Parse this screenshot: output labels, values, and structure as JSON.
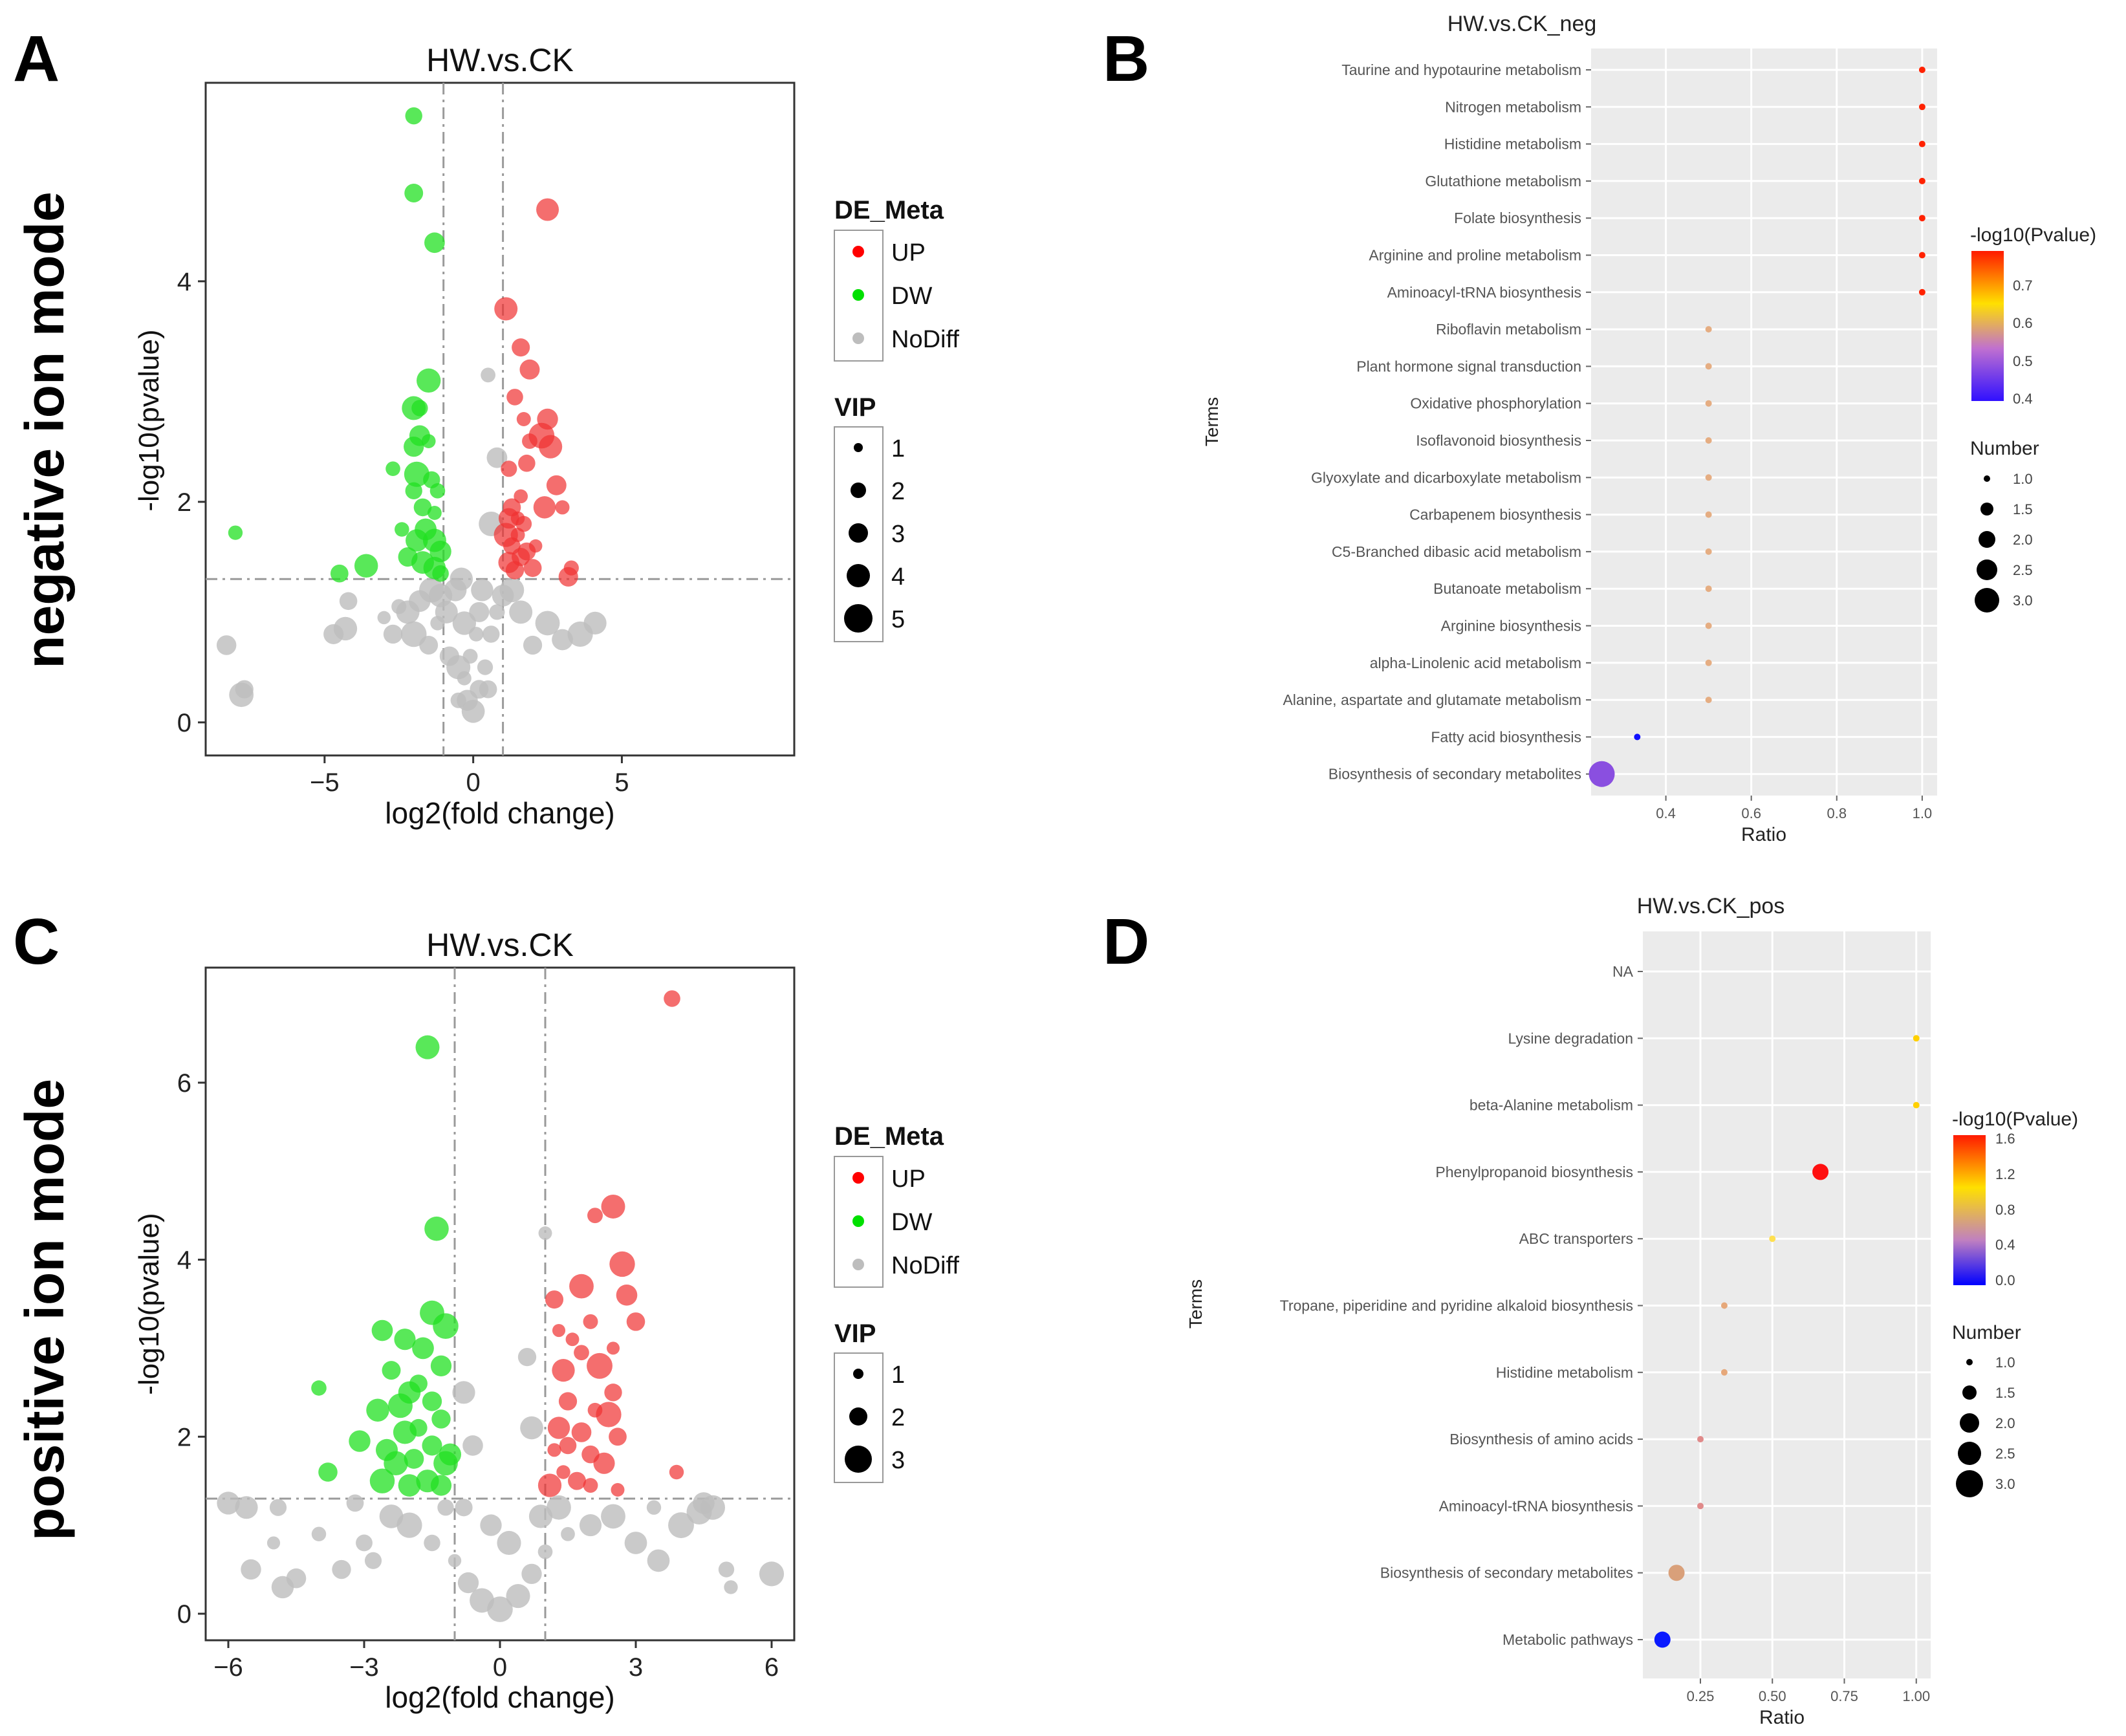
{
  "panel_labels": {
    "a": "A",
    "b": "B",
    "c": "C",
    "d": "D"
  },
  "row_labels": {
    "top": "negative ion mode",
    "bottom": "positive ion mode"
  },
  "chart_data": [
    {
      "id": "A",
      "type": "scatter",
      "title": "HW.vs.CK",
      "xlabel": "log2(fold change)",
      "ylabel": "-log10(pvalue)",
      "xlim": [
        -9,
        10.8
      ],
      "ylim": [
        -0.3,
        5.8
      ],
      "xticks": [
        -5,
        0,
        5
      ],
      "xtick_labels": [
        "−5",
        "0",
        "5"
      ],
      "yticks": [
        0,
        2,
        4
      ],
      "ytick_labels": [
        "0",
        "2",
        "4"
      ],
      "vlines": [
        -1,
        1
      ],
      "hline": 1.3,
      "legend": {
        "color_title": "DE_Meta",
        "color_entries": [
          {
            "label": "UP",
            "color": "#ff0000"
          },
          {
            "label": "DW",
            "color": "#00e000"
          },
          {
            "label": "NoDiff",
            "color": "#bdbdbd"
          }
        ],
        "size_title": "VIP",
        "size_entries": [
          "1",
          "2",
          "3",
          "4",
          "5"
        ]
      },
      "points": {
        "UP": [
          [
            2.5,
            4.65
          ],
          [
            1.1,
            3.75
          ],
          [
            1.6,
            3.4
          ],
          [
            1.9,
            3.2
          ],
          [
            1.4,
            2.95
          ],
          [
            2.5,
            2.75
          ],
          [
            1.7,
            2.75
          ],
          [
            2.3,
            2.6
          ],
          [
            1.9,
            2.55
          ],
          [
            2.6,
            2.5
          ],
          [
            1.8,
            2.35
          ],
          [
            2.8,
            2.15
          ],
          [
            3.0,
            1.95
          ],
          [
            2.4,
            1.95
          ],
          [
            1.6,
            2.05
          ],
          [
            1.3,
            1.95
          ],
          [
            1.2,
            1.85
          ],
          [
            1.7,
            1.8
          ],
          [
            1.5,
            1.7
          ],
          [
            1.3,
            1.6
          ],
          [
            1.6,
            1.5
          ],
          [
            1.2,
            1.45
          ],
          [
            1.8,
            1.55
          ],
          [
            2.1,
            1.6
          ],
          [
            1.4,
            1.38
          ],
          [
            3.3,
            1.4
          ],
          [
            3.2,
            1.32
          ],
          [
            1.1,
            1.7
          ],
          [
            1.5,
            1.85
          ],
          [
            1.2,
            2.3
          ],
          [
            2.0,
            1.4
          ]
        ],
        "DW": [
          [
            -2.0,
            5.5
          ],
          [
            -2.0,
            4.8
          ],
          [
            -1.3,
            4.35
          ],
          [
            -1.5,
            3.1
          ],
          [
            -1.8,
            2.85
          ],
          [
            -2.0,
            2.85
          ],
          [
            -1.8,
            2.6
          ],
          [
            -1.5,
            2.55
          ],
          [
            -2.0,
            2.5
          ],
          [
            -1.9,
            2.25
          ],
          [
            -1.4,
            2.2
          ],
          [
            -1.2,
            2.1
          ],
          [
            -2.0,
            2.1
          ],
          [
            -1.7,
            1.95
          ],
          [
            -1.3,
            1.9
          ],
          [
            -2.4,
            1.75
          ],
          [
            -1.6,
            1.75
          ],
          [
            -1.9,
            1.65
          ],
          [
            -1.3,
            1.65
          ],
          [
            -1.1,
            1.55
          ],
          [
            -2.2,
            1.5
          ],
          [
            -1.7,
            1.45
          ],
          [
            -1.3,
            1.4
          ],
          [
            -3.6,
            1.42
          ],
          [
            -4.5,
            1.35
          ],
          [
            -1.1,
            1.35
          ],
          [
            -8.0,
            1.72
          ],
          [
            -2.7,
            2.3
          ]
        ],
        "NoDiff": [
          [
            -7.7,
            0.3
          ],
          [
            -7.8,
            0.25
          ],
          [
            -8.3,
            0.7
          ],
          [
            -4.3,
            0.85
          ],
          [
            -4.7,
            0.8
          ],
          [
            -4.2,
            1.1
          ],
          [
            -3.0,
            0.95
          ],
          [
            -2.5,
            1.05
          ],
          [
            -2.0,
            0.8
          ],
          [
            -1.5,
            0.7
          ],
          [
            -1.2,
            0.9
          ],
          [
            -0.9,
            1.0
          ],
          [
            -0.8,
            0.6
          ],
          [
            -0.5,
            0.5
          ],
          [
            -0.3,
            0.4
          ],
          [
            -0.2,
            0.2
          ],
          [
            0,
            0.1
          ],
          [
            0.2,
            0.3
          ],
          [
            0.4,
            0.5
          ],
          [
            0.6,
            0.8
          ],
          [
            0.8,
            1.0
          ],
          [
            1.0,
            1.15
          ],
          [
            1.3,
            1.2
          ],
          [
            1.6,
            1.0
          ],
          [
            2.0,
            0.7
          ],
          [
            2.5,
            0.9
          ],
          [
            3.0,
            0.75
          ],
          [
            3.6,
            0.8
          ],
          [
            4.1,
            0.9
          ],
          [
            0.5,
            3.15
          ],
          [
            0.8,
            2.4
          ],
          [
            0.6,
            1.8
          ],
          [
            0.3,
            1.2
          ],
          [
            -0.4,
            1.3
          ],
          [
            -0.6,
            1.2
          ],
          [
            -1.1,
            1.15
          ],
          [
            -1.4,
            1.2
          ],
          [
            -1.8,
            1.1
          ],
          [
            -2.2,
            1.0
          ],
          [
            -2.7,
            0.8
          ],
          [
            -0.1,
            0.6
          ],
          [
            0.1,
            0.8
          ],
          [
            -0.3,
            0.9
          ],
          [
            0.2,
            1.0
          ],
          [
            -0.5,
            0.2
          ],
          [
            0.5,
            0.3
          ]
        ]
      }
    },
    {
      "id": "B",
      "type": "scatter",
      "title": "HW.vs.CK_neg",
      "xlabel": "Ratio",
      "ylabel": "Terms",
      "xlim": [
        0.225,
        1.035
      ],
      "xticks": [
        0.4,
        0.6,
        0.8,
        1.0
      ],
      "xtick_labels": [
        "0.4",
        "0.6",
        "0.8",
        "1.0"
      ],
      "terms": [
        "Taurine and hypotaurine metabolism",
        "Nitrogen metabolism",
        "Histidine metabolism",
        "Glutathione metabolism",
        "Folate biosynthesis",
        "Arginine and proline metabolism",
        "Aminoacyl-tRNA biosynthesis",
        "Riboflavin metabolism",
        "Plant hormone signal transduction",
        "Oxidative phosphorylation",
        "Isoflavonoid biosynthesis",
        "Glyoxylate and dicarboxylate metabolism",
        "Carbapenem biosynthesis",
        "C5-Branched dibasic acid metabolism",
        "Butanoate metabolism",
        "Arginine biosynthesis",
        "alpha-Linolenic acid metabolism",
        "Alanine, aspartate and glutamate metabolism",
        "Fatty acid biosynthesis",
        "Biosynthesis of secondary metabolites"
      ],
      "ratio": [
        1.0,
        1.0,
        1.0,
        1.0,
        1.0,
        1.0,
        1.0,
        0.5,
        0.5,
        0.5,
        0.5,
        0.5,
        0.5,
        0.5,
        0.5,
        0.5,
        0.5,
        0.5,
        0.333,
        0.25
      ],
      "number": [
        1,
        1,
        1,
        1,
        1,
        1,
        1,
        1,
        1,
        1,
        1,
        1,
        1,
        1,
        1,
        1,
        1,
        1,
        1,
        3
      ],
      "pvalue_log": [
        0.78,
        0.78,
        0.78,
        0.78,
        0.78,
        0.78,
        0.78,
        0.53,
        0.53,
        0.53,
        0.53,
        0.53,
        0.53,
        0.53,
        0.53,
        0.53,
        0.53,
        0.53,
        0.36,
        0.45
      ],
      "colors": [
        "#ff2200",
        "#ff2200",
        "#ff2200",
        "#ff2200",
        "#ff2200",
        "#ff2200",
        "#ff2200",
        "#e5ad82",
        "#e5ad82",
        "#e5ad82",
        "#e5ad82",
        "#e5ad82",
        "#e5ad82",
        "#e5ad82",
        "#e5ad82",
        "#e5ad82",
        "#e5ad82",
        "#e5ad82",
        "#1010ff",
        "#8a4fe0"
      ],
      "legend": {
        "color_title": "-log10(Pvalue)",
        "color_ticks": [
          "0.7",
          "0.6",
          "0.5",
          "0.4"
        ],
        "size_title": "Number",
        "size_ticks": [
          "1.0",
          "1.5",
          "2.0",
          "2.5",
          "3.0"
        ]
      }
    },
    {
      "id": "C",
      "type": "scatter",
      "title": "HW.vs.CK",
      "xlabel": "log2(fold change)",
      "ylabel": "-log10(pvalue)",
      "xlim": [
        -6.5,
        6.5
      ],
      "ylim": [
        -0.3,
        7.3
      ],
      "xticks": [
        -6,
        -3,
        0,
        3,
        6
      ],
      "xtick_labels": [
        "−6",
        "−3",
        "0",
        "3",
        "6"
      ],
      "yticks": [
        0,
        2,
        4,
        6
      ],
      "ytick_labels": [
        "0",
        "2",
        "4",
        "6"
      ],
      "vlines": [
        -1,
        1
      ],
      "hline": 1.3,
      "legend": {
        "color_title": "DE_Meta",
        "color_entries": [
          {
            "label": "UP",
            "color": "#ff0000"
          },
          {
            "label": "DW",
            "color": "#00e000"
          },
          {
            "label": "NoDiff",
            "color": "#bdbdbd"
          }
        ],
        "size_title": "VIP",
        "size_entries": [
          "1",
          "2",
          "3"
        ]
      },
      "points": {
        "UP": [
          [
            3.8,
            6.95
          ],
          [
            2.5,
            4.6
          ],
          [
            2.1,
            4.5
          ],
          [
            2.7,
            3.95
          ],
          [
            1.8,
            3.7
          ],
          [
            2.8,
            3.6
          ],
          [
            1.2,
            3.55
          ],
          [
            2.0,
            3.3
          ],
          [
            3.0,
            3.3
          ],
          [
            1.3,
            3.2
          ],
          [
            1.6,
            3.1
          ],
          [
            2.5,
            3.0
          ],
          [
            1.8,
            2.95
          ],
          [
            2.2,
            2.8
          ],
          [
            1.4,
            2.75
          ],
          [
            2.5,
            2.5
          ],
          [
            1.5,
            2.4
          ],
          [
            2.1,
            2.3
          ],
          [
            2.4,
            2.25
          ],
          [
            1.3,
            2.1
          ],
          [
            1.8,
            2.05
          ],
          [
            2.6,
            2.0
          ],
          [
            1.5,
            1.9
          ],
          [
            2.0,
            1.8
          ],
          [
            1.2,
            1.85
          ],
          [
            2.3,
            1.7
          ],
          [
            1.4,
            1.6
          ],
          [
            1.7,
            1.5
          ],
          [
            3.9,
            1.6
          ],
          [
            2.6,
            1.4
          ],
          [
            1.1,
            1.45
          ],
          [
            2.0,
            1.45
          ]
        ],
        "DW": [
          [
            -1.6,
            6.4
          ],
          [
            -1.4,
            4.35
          ],
          [
            -1.5,
            3.4
          ],
          [
            -1.2,
            3.25
          ],
          [
            -2.6,
            3.2
          ],
          [
            -2.1,
            3.1
          ],
          [
            -1.7,
            3.0
          ],
          [
            -2.4,
            2.75
          ],
          [
            -1.3,
            2.8
          ],
          [
            -1.8,
            2.6
          ],
          [
            -2.0,
            2.5
          ],
          [
            -4.0,
            2.55
          ],
          [
            -1.5,
            2.4
          ],
          [
            -2.2,
            2.35
          ],
          [
            -2.7,
            2.3
          ],
          [
            -1.3,
            2.2
          ],
          [
            -1.8,
            2.1
          ],
          [
            -2.1,
            2.05
          ],
          [
            -3.1,
            1.95
          ],
          [
            -1.5,
            1.9
          ],
          [
            -2.5,
            1.85
          ],
          [
            -1.9,
            1.75
          ],
          [
            -1.2,
            1.7
          ],
          [
            -2.3,
            1.7
          ],
          [
            -3.8,
            1.6
          ],
          [
            -1.6,
            1.5
          ],
          [
            -2.0,
            1.45
          ],
          [
            -2.6,
            1.5
          ],
          [
            -1.3,
            1.45
          ],
          [
            -1.1,
            1.8
          ]
        ],
        "NoDiff": [
          [
            -6.0,
            1.25
          ],
          [
            -4.9,
            1.2
          ],
          [
            -5.5,
            0.5
          ],
          [
            -4.0,
            0.9
          ],
          [
            -4.8,
            0.3
          ],
          [
            -4.5,
            0.4
          ],
          [
            -5.0,
            0.8
          ],
          [
            -3.5,
            0.5
          ],
          [
            -3.0,
            0.8
          ],
          [
            -2.4,
            1.1
          ],
          [
            -2.0,
            1.0
          ],
          [
            -1.5,
            0.8
          ],
          [
            -1.0,
            0.6
          ],
          [
            -0.7,
            0.35
          ],
          [
            -0.4,
            0.15
          ],
          [
            0,
            0.05
          ],
          [
            0.4,
            0.2
          ],
          [
            0.7,
            0.45
          ],
          [
            1.0,
            0.7
          ],
          [
            1.5,
            0.9
          ],
          [
            2.0,
            1.0
          ],
          [
            2.5,
            1.1
          ],
          [
            3.0,
            0.8
          ],
          [
            3.5,
            0.6
          ],
          [
            4.5,
            1.25
          ],
          [
            5.0,
            0.5
          ],
          [
            5.1,
            0.3
          ],
          [
            6.0,
            0.45
          ],
          [
            4.4,
            1.15
          ],
          [
            3.4,
            1.2
          ],
          [
            4.0,
            1.0
          ],
          [
            -3.2,
            1.25
          ],
          [
            -2.8,
            0.6
          ],
          [
            -0.8,
            1.2
          ],
          [
            0.9,
            1.1
          ],
          [
            1.0,
            4.3
          ],
          [
            0.6,
            2.9
          ],
          [
            0.7,
            2.1
          ],
          [
            -0.8,
            2.5
          ],
          [
            -0.6,
            1.9
          ],
          [
            -0.2,
            1.0
          ],
          [
            0.2,
            0.8
          ],
          [
            -1.2,
            1.2
          ],
          [
            1.3,
            1.2
          ],
          [
            -5.6,
            1.2
          ],
          [
            4.7,
            1.2
          ]
        ]
      }
    },
    {
      "id": "D",
      "type": "scatter",
      "title": "HW.vs.CK_pos",
      "xlabel": "Ratio",
      "ylabel": "Terms",
      "xlim": [
        0.05,
        1.05
      ],
      "xticks": [
        0.25,
        0.5,
        0.75,
        1.0
      ],
      "xtick_labels": [
        "0.25",
        "0.50",
        "0.75",
        "1.00"
      ],
      "terms": [
        "NA",
        "Lysine degradation",
        "beta-Alanine metabolism",
        "Phenylpropanoid biosynthesis",
        "ABC transporters",
        "Tropane, piperidine and pyridine alkaloid biosynthesis",
        "Histidine metabolism",
        "Biosynthesis of amino acids",
        "Aminoacyl-tRNA biosynthesis",
        "Biosynthesis of secondary metabolites",
        "Metabolic pathways"
      ],
      "ratio": [
        null,
        1.0,
        1.0,
        0.667,
        0.5,
        0.333,
        0.333,
        0.25,
        0.25,
        0.167,
        0.118
      ],
      "number": [
        null,
        1,
        1,
        2,
        1,
        1,
        1,
        1,
        1,
        2,
        2
      ],
      "pvalue_log": [
        null,
        0.95,
        0.95,
        1.55,
        0.9,
        0.55,
        0.55,
        0.4,
        0.4,
        0.5,
        0.05
      ],
      "colors": [
        "#ffffff",
        "#ffd000",
        "#ffd000",
        "#ff1010",
        "#ffe050",
        "#e6a87a",
        "#e6a87a",
        "#e08a8a",
        "#e08a8a",
        "#d9a07a",
        "#0a1aff"
      ],
      "legend": {
        "color_title": "-log10(Pvalue)",
        "color_ticks": [
          "1.6",
          "1.2",
          "0.8",
          "0.4",
          "0.0"
        ],
        "size_title": "Number",
        "size_ticks": [
          "1.0",
          "1.5",
          "2.0",
          "2.5",
          "3.0"
        ]
      }
    }
  ]
}
